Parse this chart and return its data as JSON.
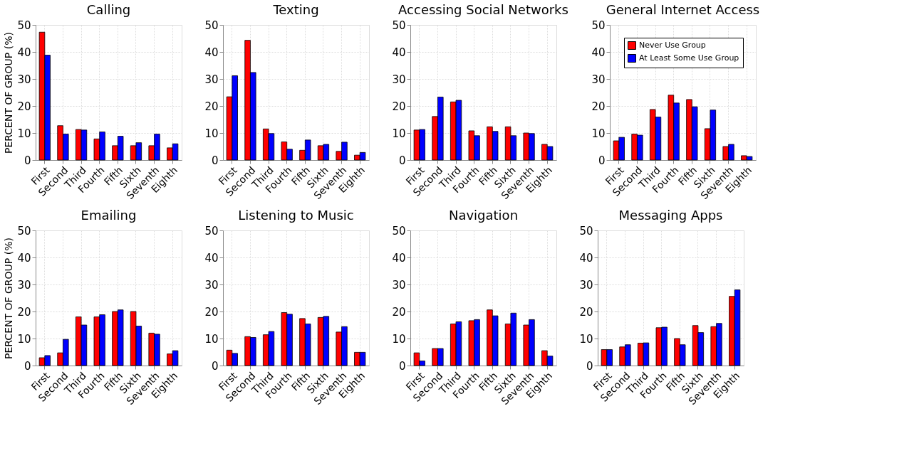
{
  "chart_data": [
    {
      "type": "bar",
      "title": "Calling",
      "ylabel": "PERCENT OF GROUP (%)",
      "categories": [
        "First",
        "Second",
        "Third",
        "Fourth",
        "Fifth",
        "Sixth",
        "Seventh",
        "Eighth"
      ],
      "ylim": [
        0,
        50
      ],
      "yticks": [
        0,
        10,
        20,
        30,
        40,
        50
      ],
      "grid": true,
      "series": [
        {
          "color": "#ff0000",
          "values": [
            47.3,
            12.7,
            11.3,
            7.8,
            5.3,
            5.3,
            5.3,
            4.5
          ]
        },
        {
          "color": "#0000ff",
          "values": [
            38.8,
            9.6,
            11.1,
            10.4,
            8.8,
            6.4,
            9.6,
            6.0
          ]
        }
      ]
    },
    {
      "type": "bar",
      "title": "Texting",
      "categories": [
        "First",
        "Second",
        "Third",
        "Fourth",
        "Fifth",
        "Sixth",
        "Seventh",
        "Eighth"
      ],
      "ylim": [
        0,
        50
      ],
      "yticks": [
        0,
        10,
        20,
        30,
        40,
        50
      ],
      "grid": true,
      "series": [
        {
          "color": "#ff0000",
          "values": [
            23.4,
            44.3,
            11.5,
            6.7,
            3.6,
            5.3,
            3.2,
            1.8
          ]
        },
        {
          "color": "#0000ff",
          "values": [
            31.2,
            32.4,
            9.8,
            4.0,
            7.4,
            5.8,
            6.6,
            2.8
          ]
        }
      ]
    },
    {
      "type": "bar",
      "title": "Accessing Social Networks",
      "categories": [
        "First",
        "Second",
        "Third",
        "Fourth",
        "Fifth",
        "Sixth",
        "Seventh",
        "Eighth"
      ],
      "ylim": [
        0,
        50
      ],
      "yticks": [
        0,
        10,
        20,
        30,
        40,
        50
      ],
      "grid": true,
      "series": [
        {
          "color": "#ff0000",
          "values": [
            11.1,
            16.1,
            21.5,
            10.8,
            12.3,
            12.3,
            10.0,
            5.8
          ]
        },
        {
          "color": "#0000ff",
          "values": [
            11.3,
            23.3,
            22.1,
            9.0,
            10.6,
            9.0,
            9.8,
            5.0
          ]
        }
      ]
    },
    {
      "type": "bar",
      "title": "General Internet Access",
      "categories": [
        "First",
        "Second",
        "Third",
        "Fourth",
        "Fifth",
        "Sixth",
        "Seventh",
        "Eighth"
      ],
      "ylim": [
        0,
        50
      ],
      "yticks": [
        0,
        10,
        20,
        30,
        40,
        50
      ],
      "grid": true,
      "legend": "top right",
      "series": [
        {
          "name": "Never Use Group",
          "color": "#ff0000",
          "values": [
            7.1,
            9.6,
            18.7,
            24.0,
            22.4,
            11.6,
            5.0,
            1.6
          ]
        },
        {
          "name": "At Least Some Use Group",
          "color": "#0000ff",
          "values": [
            8.4,
            9.2,
            15.9,
            21.1,
            19.7,
            18.5,
            5.8,
            1.3
          ]
        }
      ]
    },
    {
      "type": "bar",
      "title": "Emailing",
      "ylabel": "PERCENT OF GROUP (%)",
      "categories": [
        "First",
        "Second",
        "Third",
        "Fourth",
        "Fifth",
        "Sixth",
        "Seventh",
        "Eighth"
      ],
      "ylim": [
        0,
        50
      ],
      "yticks": [
        0,
        10,
        20,
        30,
        40,
        50
      ],
      "grid": true,
      "series": [
        {
          "color": "#ff0000",
          "values": [
            2.9,
            4.7,
            18.0,
            18.0,
            20.0,
            20.0,
            12.0,
            4.3
          ]
        },
        {
          "color": "#0000ff",
          "values": [
            3.7,
            9.7,
            15.0,
            18.8,
            20.6,
            14.6,
            11.6,
            5.5
          ]
        }
      ]
    },
    {
      "type": "bar",
      "title": "Listening to Music",
      "categories": [
        "First",
        "Second",
        "Third",
        "Fourth",
        "Fifth",
        "Sixth",
        "Seventh",
        "Eighth"
      ],
      "ylim": [
        0,
        50
      ],
      "yticks": [
        0,
        10,
        20,
        30,
        40,
        50
      ],
      "grid": true,
      "series": [
        {
          "color": "#ff0000",
          "values": [
            5.7,
            10.7,
            11.4,
            19.6,
            17.4,
            17.8,
            12.4,
            4.9
          ]
        },
        {
          "color": "#0000ff",
          "values": [
            4.5,
            10.4,
            12.6,
            19.0,
            15.4,
            18.2,
            14.4,
            4.9
          ]
        }
      ]
    },
    {
      "type": "bar",
      "title": "Navigation",
      "categories": [
        "First",
        "Second",
        "Third",
        "Fourth",
        "Fifth",
        "Sixth",
        "Seventh",
        "Eighth"
      ],
      "ylim": [
        0,
        50
      ],
      "yticks": [
        0,
        10,
        20,
        30,
        40,
        50
      ],
      "grid": true,
      "series": [
        {
          "color": "#ff0000",
          "values": [
            4.7,
            6.3,
            15.4,
            16.6,
            20.6,
            15.4,
            15.0,
            5.5
          ]
        },
        {
          "color": "#0000ff",
          "values": [
            1.7,
            6.3,
            16.2,
            17.0,
            18.4,
            19.4,
            17.0,
            3.5
          ]
        }
      ]
    },
    {
      "type": "bar",
      "title": "Messaging Apps",
      "categories": [
        "First",
        "Second",
        "Third",
        "Fourth",
        "Fifth",
        "Sixth",
        "Seventh",
        "Eighth"
      ],
      "ylim": [
        0,
        50
      ],
      "yticks": [
        0,
        10,
        20,
        30,
        40,
        50
      ],
      "grid": true,
      "series": [
        {
          "color": "#ff0000",
          "values": [
            5.9,
            6.9,
            8.3,
            14.0,
            10.0,
            14.8,
            14.4,
            25.6
          ]
        },
        {
          "color": "#0000ff",
          "values": [
            5.9,
            7.7,
            8.4,
            14.2,
            7.7,
            12.2,
            15.6,
            28.0
          ]
        }
      ]
    }
  ]
}
